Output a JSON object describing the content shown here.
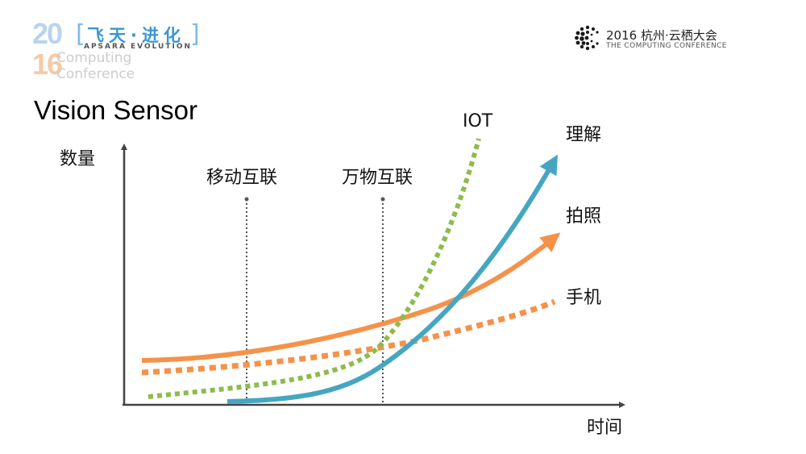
{
  "event_logo": {
    "year_top": "20",
    "year_bottom": "16",
    "subtitle_line1": "Computing",
    "subtitle_line2": "Conference",
    "theme_cn": "飞天·进化",
    "theme_en": "APSARA EVOLUTION",
    "bracket_left": "[",
    "bracket_right": "]",
    "colors": {
      "blue": "#3b97d3",
      "light_blue": "#b9d4ee",
      "peach": "#f6c9a6"
    }
  },
  "conference_logo": {
    "title": "2016 杭州·云栖大会",
    "subtitle": "THE COMPUTING CONFERENCE",
    "icon": "dotted-c-icon"
  },
  "slide": {
    "title": "Vision Sensor"
  },
  "chart_data": {
    "type": "line",
    "title": "Vision Sensor",
    "xlabel": "时间",
    "ylabel": "数量",
    "grid": false,
    "axis_ticks": false,
    "markers": [
      {
        "label": "移动互联"
      },
      {
        "label": "万物互联"
      }
    ],
    "series": [
      {
        "name": "IOT",
        "style": "dashed",
        "color": "#8dbb4e"
      },
      {
        "name": "理解",
        "style": "solid-arrow",
        "color": "#46a6c1"
      },
      {
        "name": "拍照",
        "style": "solid-arrow",
        "color": "#f5924a"
      },
      {
        "name": "手机",
        "style": "dashed",
        "color": "#f5924a"
      }
    ],
    "colors": {
      "axis": "#444444",
      "marker_line": "#555555"
    }
  }
}
